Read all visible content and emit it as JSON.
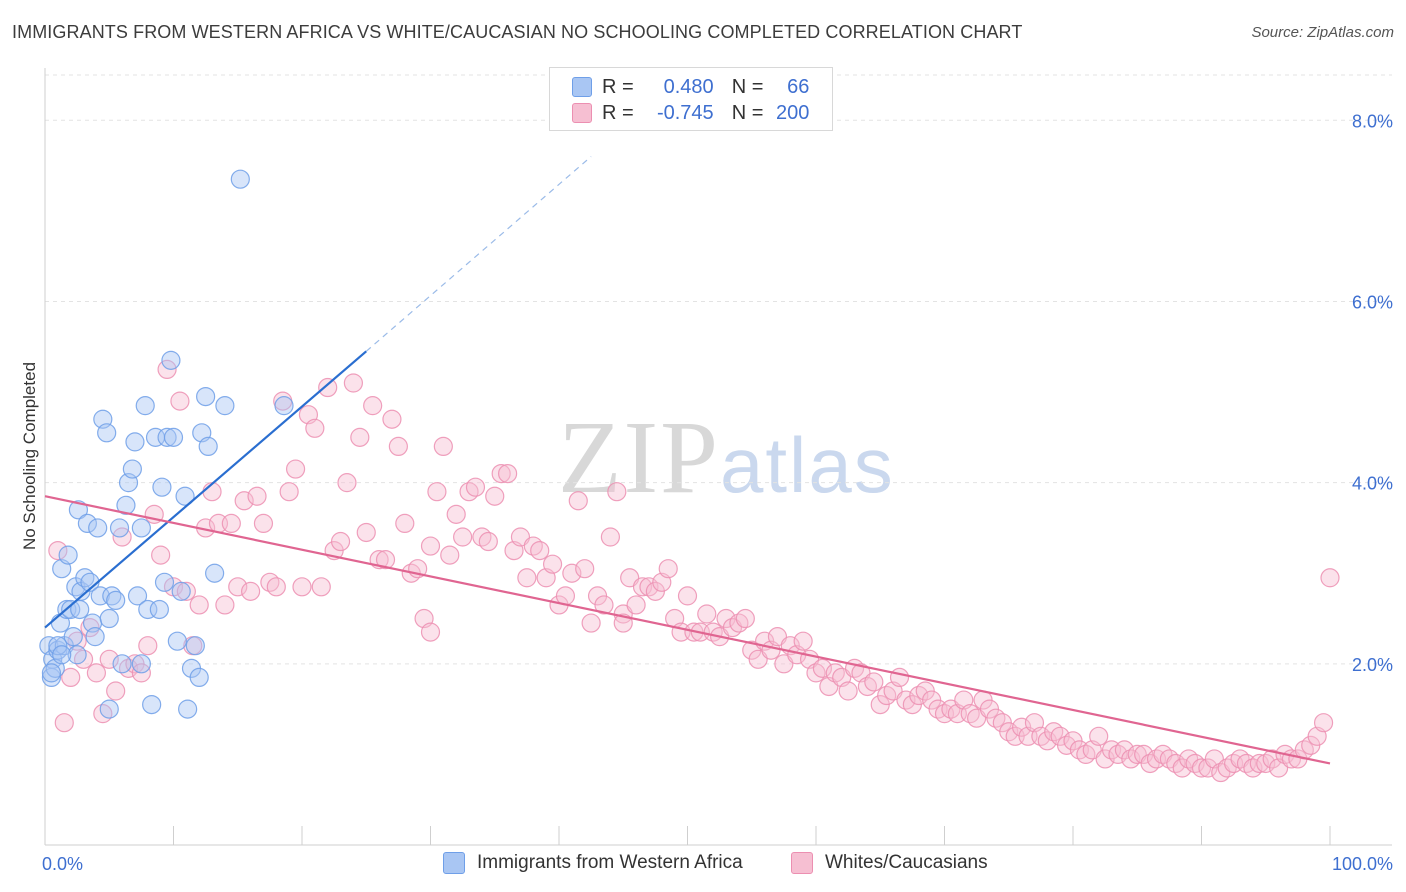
{
  "title": "IMMIGRANTS FROM WESTERN AFRICA VS WHITE/CAUCASIAN NO SCHOOLING COMPLETED CORRELATION CHART",
  "source": "Source: ZipAtlas.com",
  "watermark": {
    "zip": "ZIP",
    "atlas": "atlas"
  },
  "colors": {
    "blue": "#6f9fe8",
    "blue_fill": "#a9c6f3",
    "blue_line": "#2a6ed0",
    "pink": "#ec8fb1",
    "pink_fill": "#f6bfd2",
    "pink_line": "#e06591",
    "tick_label": "#3e6fd0"
  },
  "legend": {
    "rows": [
      {
        "r_label": "R = ",
        "r_value": "0.480",
        "n_label": "N = ",
        "n_value": "66"
      },
      {
        "r_label": "R = ",
        "r_value": "-0.745",
        "n_label": "N = ",
        "n_value": "200"
      }
    ]
  },
  "bottom_legend": [
    "Immigrants from Western Africa",
    "Whites/Caucasians"
  ],
  "chart_data": {
    "type": "scatter",
    "xlabel": "",
    "ylabel": "No Schooling Completed",
    "xlim": [
      0,
      100
    ],
    "ylim": [
      0,
      8.5
    ],
    "x_tick_labels": [
      {
        "value": 0,
        "label": "0.0%"
      },
      {
        "value": 100,
        "label": "100.0%"
      }
    ],
    "y_ticks": [
      {
        "value": 2,
        "label": "2.0%"
      },
      {
        "value": 4,
        "label": "4.0%"
      },
      {
        "value": 6,
        "label": "6.0%"
      },
      {
        "value": 8,
        "label": "8.0%"
      }
    ],
    "grid": true,
    "series": [
      {
        "name": "Immigrants from Western Africa",
        "color": "#6f9fe8",
        "points": [
          [
            0.3,
            2.2
          ],
          [
            0.5,
            1.85
          ],
          [
            0.6,
            2.05
          ],
          [
            0.8,
            1.95
          ],
          [
            1.0,
            2.15
          ],
          [
            1.2,
            2.45
          ],
          [
            1.3,
            3.05
          ],
          [
            1.5,
            2.2
          ],
          [
            1.7,
            2.6
          ],
          [
            1.8,
            3.2
          ],
          [
            2.0,
            2.6
          ],
          [
            2.2,
            2.3
          ],
          [
            2.4,
            2.85
          ],
          [
            2.6,
            3.7
          ],
          [
            2.7,
            2.6
          ],
          [
            2.8,
            2.8
          ],
          [
            3.1,
            2.95
          ],
          [
            3.3,
            3.55
          ],
          [
            3.5,
            2.9
          ],
          [
            3.7,
            2.45
          ],
          [
            3.9,
            2.3
          ],
          [
            4.1,
            3.5
          ],
          [
            4.3,
            2.75
          ],
          [
            4.5,
            4.7
          ],
          [
            4.8,
            4.55
          ],
          [
            5.0,
            2.5
          ],
          [
            5.2,
            2.75
          ],
          [
            5.5,
            2.7
          ],
          [
            5.8,
            3.5
          ],
          [
            6.0,
            2.0
          ],
          [
            6.3,
            3.75
          ],
          [
            6.5,
            4.0
          ],
          [
            6.8,
            4.15
          ],
          [
            7.0,
            4.45
          ],
          [
            7.2,
            2.75
          ],
          [
            7.5,
            3.5
          ],
          [
            7.8,
            4.85
          ],
          [
            8.0,
            2.6
          ],
          [
            8.3,
            1.55
          ],
          [
            8.6,
            4.5
          ],
          [
            8.9,
            2.6
          ],
          [
            9.1,
            3.95
          ],
          [
            9.3,
            2.9
          ],
          [
            9.5,
            4.5
          ],
          [
            9.8,
            5.35
          ],
          [
            10.0,
            4.5
          ],
          [
            10.3,
            2.25
          ],
          [
            10.6,
            2.8
          ],
          [
            10.9,
            3.85
          ],
          [
            11.1,
            1.5
          ],
          [
            11.4,
            1.95
          ],
          [
            11.7,
            2.2
          ],
          [
            12.0,
            1.85
          ],
          [
            12.2,
            4.55
          ],
          [
            12.5,
            4.95
          ],
          [
            12.7,
            4.4
          ],
          [
            13.2,
            3.0
          ],
          [
            14.0,
            4.85
          ],
          [
            15.2,
            7.35
          ],
          [
            18.6,
            4.85
          ],
          [
            1.0,
            2.2
          ],
          [
            2.5,
            2.1
          ],
          [
            5.0,
            1.5
          ],
          [
            7.5,
            2.0
          ],
          [
            0.5,
            1.9
          ],
          [
            1.3,
            2.1
          ]
        ]
      },
      {
        "name": "Whites/Caucasians",
        "color": "#ec8fb1",
        "points": [
          [
            1.0,
            3.25
          ],
          [
            1.5,
            1.35
          ],
          [
            2.0,
            1.85
          ],
          [
            2.5,
            2.25
          ],
          [
            3.0,
            2.05
          ],
          [
            3.5,
            2.4
          ],
          [
            4.0,
            1.9
          ],
          [
            4.5,
            1.45
          ],
          [
            5.0,
            2.05
          ],
          [
            5.5,
            1.7
          ],
          [
            6.0,
            3.4
          ],
          [
            6.5,
            1.95
          ],
          [
            7.0,
            2.0
          ],
          [
            7.5,
            1.9
          ],
          [
            8.0,
            2.2
          ],
          [
            8.5,
            3.65
          ],
          [
            9.0,
            3.2
          ],
          [
            9.5,
            5.25
          ],
          [
            10.0,
            2.85
          ],
          [
            10.5,
            4.9
          ],
          [
            11.0,
            2.8
          ],
          [
            11.5,
            2.2
          ],
          [
            12.0,
            2.65
          ],
          [
            12.5,
            3.5
          ],
          [
            13.0,
            3.9
          ],
          [
            13.5,
            3.55
          ],
          [
            14.0,
            2.65
          ],
          [
            14.5,
            3.55
          ],
          [
            15.0,
            2.85
          ],
          [
            15.5,
            3.8
          ],
          [
            16.0,
            2.8
          ],
          [
            16.5,
            3.85
          ],
          [
            17.0,
            3.55
          ],
          [
            17.5,
            2.9
          ],
          [
            18.0,
            2.85
          ],
          [
            18.5,
            4.9
          ],
          [
            19.0,
            3.9
          ],
          [
            19.5,
            4.15
          ],
          [
            20.0,
            2.85
          ],
          [
            20.5,
            4.75
          ],
          [
            21.0,
            4.6
          ],
          [
            21.5,
            2.85
          ],
          [
            22.0,
            5.05
          ],
          [
            22.5,
            3.25
          ],
          [
            23.0,
            3.35
          ],
          [
            23.5,
            4.0
          ],
          [
            24.0,
            5.1
          ],
          [
            24.5,
            4.5
          ],
          [
            25.0,
            3.45
          ],
          [
            25.5,
            4.85
          ],
          [
            26.0,
            3.15
          ],
          [
            26.5,
            3.15
          ],
          [
            27.0,
            4.7
          ],
          [
            27.5,
            4.4
          ],
          [
            28.0,
            3.55
          ],
          [
            28.5,
            3.0
          ],
          [
            29.0,
            3.05
          ],
          [
            29.5,
            2.5
          ],
          [
            30.0,
            3.3
          ],
          [
            30.5,
            3.9
          ],
          [
            31.0,
            4.4
          ],
          [
            31.5,
            3.2
          ],
          [
            32.0,
            3.65
          ],
          [
            32.5,
            3.4
          ],
          [
            33.0,
            3.9
          ],
          [
            33.5,
            3.95
          ],
          [
            34.0,
            3.4
          ],
          [
            34.5,
            3.35
          ],
          [
            35.0,
            3.85
          ],
          [
            35.5,
            4.1
          ],
          [
            36.0,
            4.1
          ],
          [
            36.5,
            3.25
          ],
          [
            37.0,
            3.4
          ],
          [
            37.5,
            2.95
          ],
          [
            38.0,
            3.3
          ],
          [
            38.5,
            3.25
          ],
          [
            39.0,
            2.95
          ],
          [
            39.5,
            3.1
          ],
          [
            40.0,
            2.65
          ],
          [
            40.5,
            2.75
          ],
          [
            41.0,
            3.0
          ],
          [
            41.5,
            3.8
          ],
          [
            42.0,
            3.05
          ],
          [
            42.5,
            2.45
          ],
          [
            43.0,
            2.75
          ],
          [
            43.5,
            2.65
          ],
          [
            44.0,
            3.4
          ],
          [
            44.5,
            3.9
          ],
          [
            45.0,
            2.55
          ],
          [
            45.5,
            2.95
          ],
          [
            46.0,
            2.65
          ],
          [
            46.5,
            2.85
          ],
          [
            47.0,
            2.85
          ],
          [
            47.5,
            2.8
          ],
          [
            48.0,
            2.9
          ],
          [
            48.5,
            3.05
          ],
          [
            49.0,
            2.5
          ],
          [
            49.5,
            2.35
          ],
          [
            50.0,
            2.75
          ],
          [
            50.5,
            2.35
          ],
          [
            51.0,
            2.35
          ],
          [
            51.5,
            2.55
          ],
          [
            52.0,
            2.35
          ],
          [
            52.5,
            2.3
          ],
          [
            53.0,
            2.5
          ],
          [
            53.5,
            2.4
          ],
          [
            54.0,
            2.45
          ],
          [
            54.5,
            2.5
          ],
          [
            55.0,
            2.15
          ],
          [
            55.5,
            2.05
          ],
          [
            56.0,
            2.25
          ],
          [
            56.5,
            2.15
          ],
          [
            57.0,
            2.3
          ],
          [
            57.5,
            2.0
          ],
          [
            58.0,
            2.2
          ],
          [
            58.5,
            2.1
          ],
          [
            59.0,
            2.25
          ],
          [
            59.5,
            2.05
          ],
          [
            60.0,
            1.9
          ],
          [
            60.5,
            1.95
          ],
          [
            61.0,
            1.75
          ],
          [
            61.5,
            1.9
          ],
          [
            62.0,
            1.85
          ],
          [
            62.5,
            1.7
          ],
          [
            63.0,
            1.95
          ],
          [
            63.5,
            1.9
          ],
          [
            64.0,
            1.75
          ],
          [
            64.5,
            1.8
          ],
          [
            65.0,
            1.55
          ],
          [
            65.5,
            1.65
          ],
          [
            66.0,
            1.7
          ],
          [
            66.5,
            1.85
          ],
          [
            67.0,
            1.6
          ],
          [
            67.5,
            1.55
          ],
          [
            68.0,
            1.65
          ],
          [
            68.5,
            1.7
          ],
          [
            69.0,
            1.6
          ],
          [
            69.5,
            1.5
          ],
          [
            70.0,
            1.45
          ],
          [
            70.5,
            1.5
          ],
          [
            71.0,
            1.45
          ],
          [
            71.5,
            1.6
          ],
          [
            72.0,
            1.45
          ],
          [
            72.5,
            1.4
          ],
          [
            73.0,
            1.6
          ],
          [
            73.5,
            1.5
          ],
          [
            74.0,
            1.4
          ],
          [
            74.5,
            1.35
          ],
          [
            75.0,
            1.25
          ],
          [
            75.5,
            1.2
          ],
          [
            76.0,
            1.3
          ],
          [
            76.5,
            1.2
          ],
          [
            77.0,
            1.35
          ],
          [
            77.5,
            1.2
          ],
          [
            78.0,
            1.15
          ],
          [
            78.5,
            1.25
          ],
          [
            79.0,
            1.2
          ],
          [
            79.5,
            1.1
          ],
          [
            80.0,
            1.15
          ],
          [
            80.5,
            1.05
          ],
          [
            81.0,
            1.0
          ],
          [
            81.5,
            1.05
          ],
          [
            82.0,
            1.2
          ],
          [
            82.5,
            0.95
          ],
          [
            83.0,
            1.05
          ],
          [
            83.5,
            1.0
          ],
          [
            84.0,
            1.05
          ],
          [
            84.5,
            0.95
          ],
          [
            85.0,
            1.0
          ],
          [
            85.5,
            1.0
          ],
          [
            86.0,
            0.9
          ],
          [
            86.5,
            0.95
          ],
          [
            87.0,
            1.0
          ],
          [
            87.5,
            0.95
          ],
          [
            88.0,
            0.9
          ],
          [
            88.5,
            0.85
          ],
          [
            89.0,
            0.95
          ],
          [
            89.5,
            0.9
          ],
          [
            90.0,
            0.85
          ],
          [
            90.5,
            0.85
          ],
          [
            91.0,
            0.95
          ],
          [
            91.5,
            0.8
          ],
          [
            92.0,
            0.85
          ],
          [
            92.5,
            0.9
          ],
          [
            93.0,
            0.95
          ],
          [
            93.5,
            0.9
          ],
          [
            94.0,
            0.85
          ],
          [
            94.5,
            0.9
          ],
          [
            95.0,
            0.9
          ],
          [
            95.5,
            0.95
          ],
          [
            96.0,
            0.85
          ],
          [
            96.5,
            1.0
          ],
          [
            97.0,
            0.95
          ],
          [
            97.5,
            0.95
          ],
          [
            98.0,
            1.05
          ],
          [
            98.5,
            1.1
          ],
          [
            99.0,
            1.2
          ],
          [
            99.5,
            1.35
          ],
          [
            100.0,
            2.95
          ],
          [
            45.0,
            2.45
          ],
          [
            30.0,
            2.35
          ]
        ]
      }
    ],
    "trend_lines": [
      {
        "series": "Immigrants from Western Africa",
        "x": [
          0,
          25
        ],
        "y": [
          2.4,
          5.45
        ],
        "dashed_extension_x": [
          25,
          42.5
        ],
        "dashed_extension_y": [
          5.45,
          7.6
        ]
      },
      {
        "series": "Whites/Caucasians",
        "x": [
          0,
          100
        ],
        "y": [
          3.85,
          0.9
        ]
      }
    ]
  }
}
